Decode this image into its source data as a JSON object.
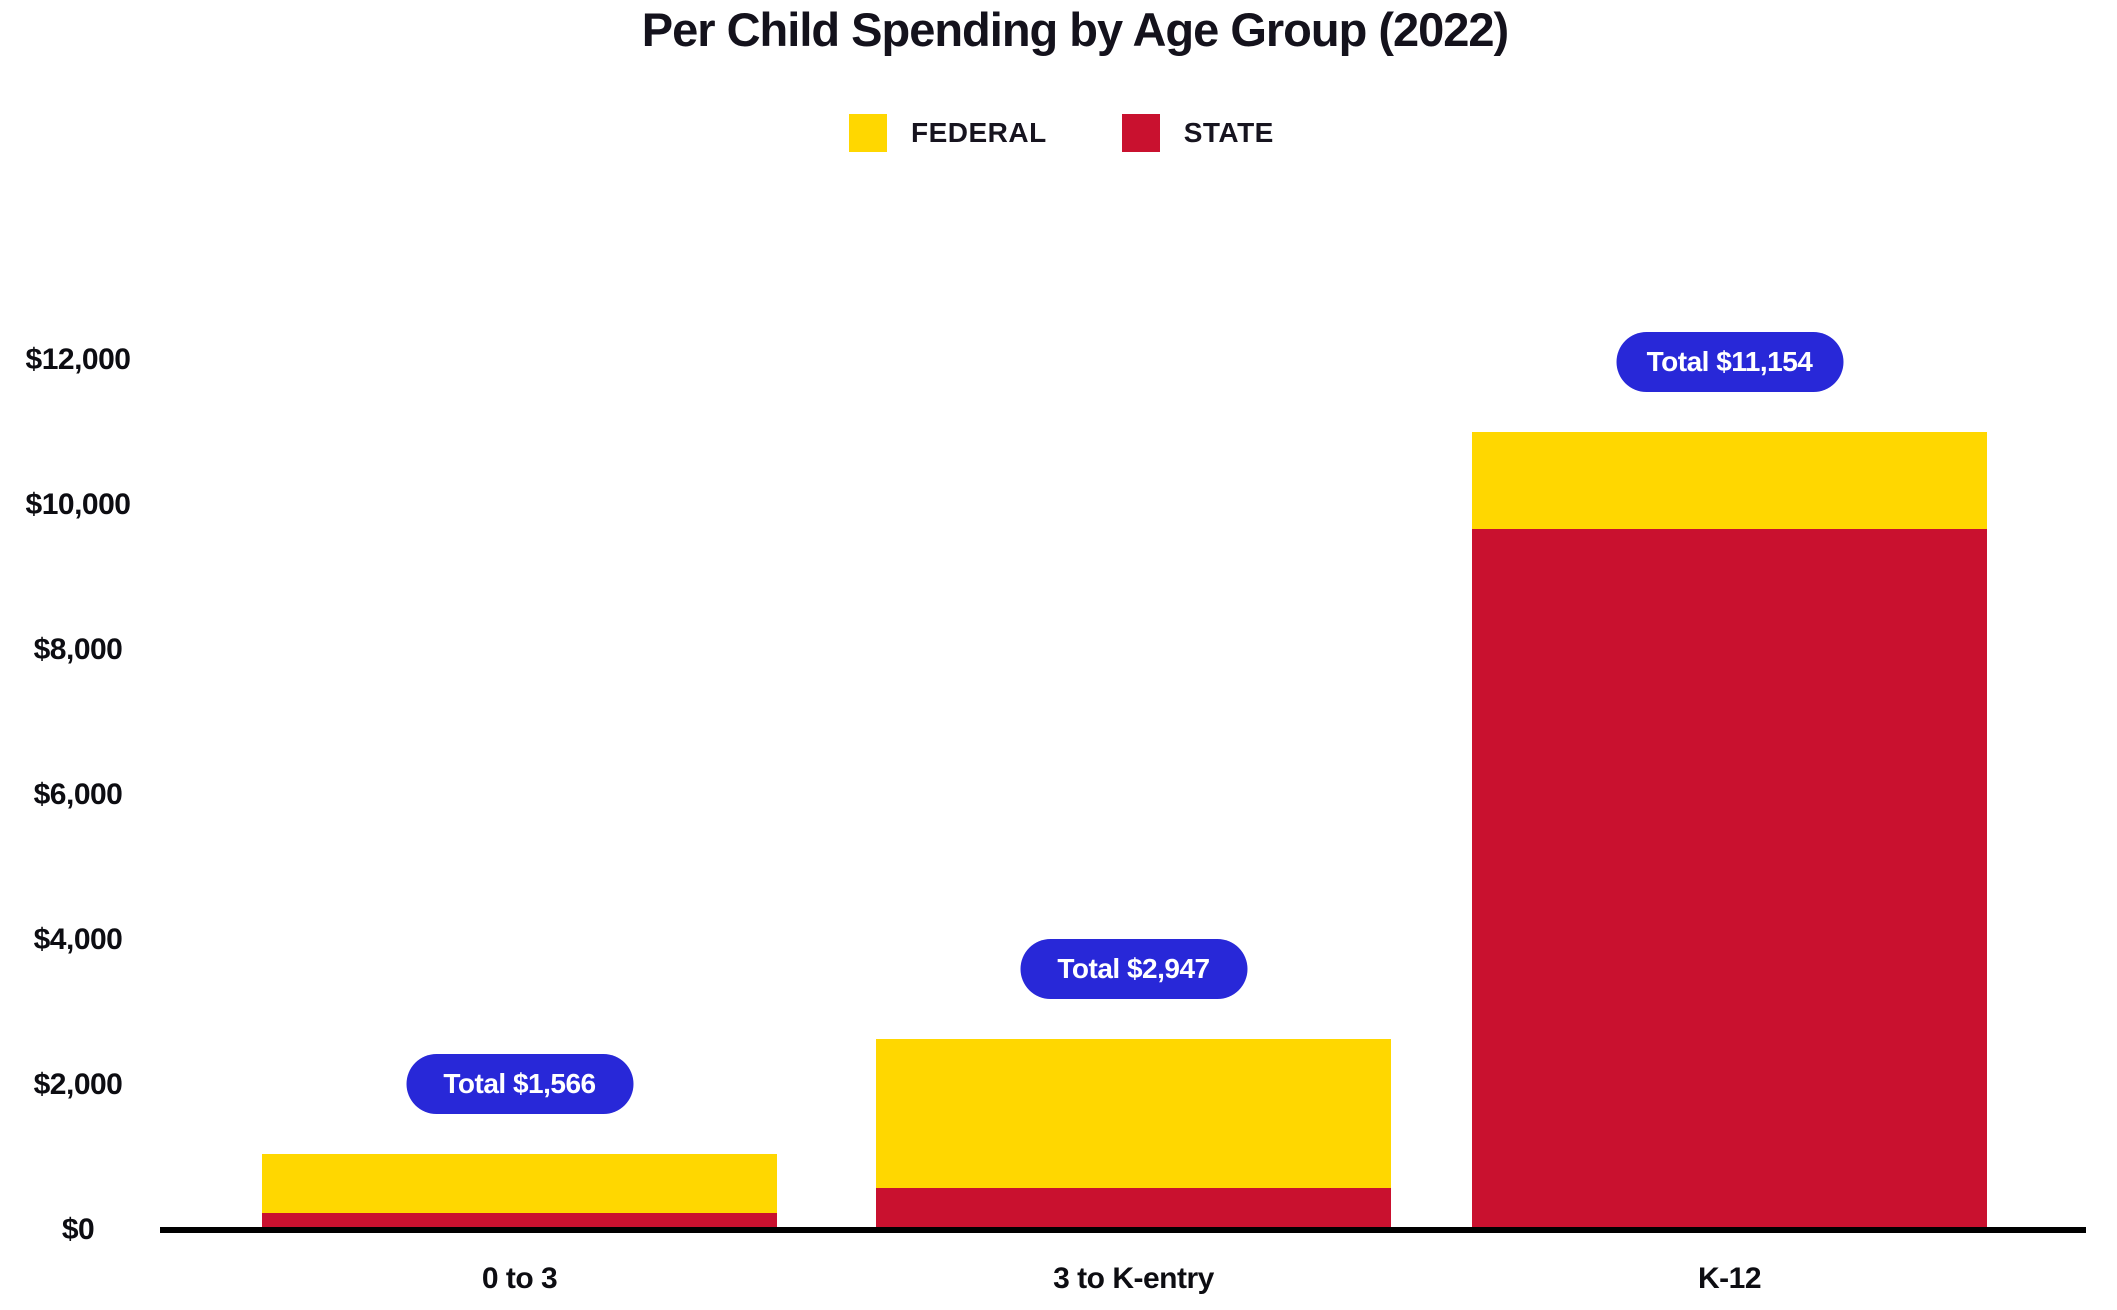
{
  "header": {
    "title": "Per Child Spending by Age Group (2022)"
  },
  "chart_data": {
    "type": "bar",
    "stacked": true,
    "title": "Per Child Spending by Age Group (2022)",
    "categories": [
      "0 to 3",
      "3 to K-entry",
      "K-12"
    ],
    "series": [
      {
        "name": "FEDERAL",
        "color": "#FFD700",
        "values": [
          815,
          2055,
          1340
        ]
      },
      {
        "name": "STATE",
        "color": "#C9112F",
        "values": [
          235,
          580,
          9670
        ]
      }
    ],
    "totals": [
      1566,
      2947,
      11154
    ],
    "total_labels": [
      "Total $1,566",
      "Total $2,947",
      "Total $11,154"
    ],
    "y_ticks": [
      "$0",
      "$2,000",
      "$4,000",
      "$6,000",
      "$8,000",
      "$10,000",
      "$12,000"
    ],
    "ylim": [
      0,
      12000
    ],
    "grid": false,
    "legend_position": "top",
    "badge_color": "#2828D8",
    "axis_color": "#000000",
    "text_color": "#0d0d12"
  }
}
